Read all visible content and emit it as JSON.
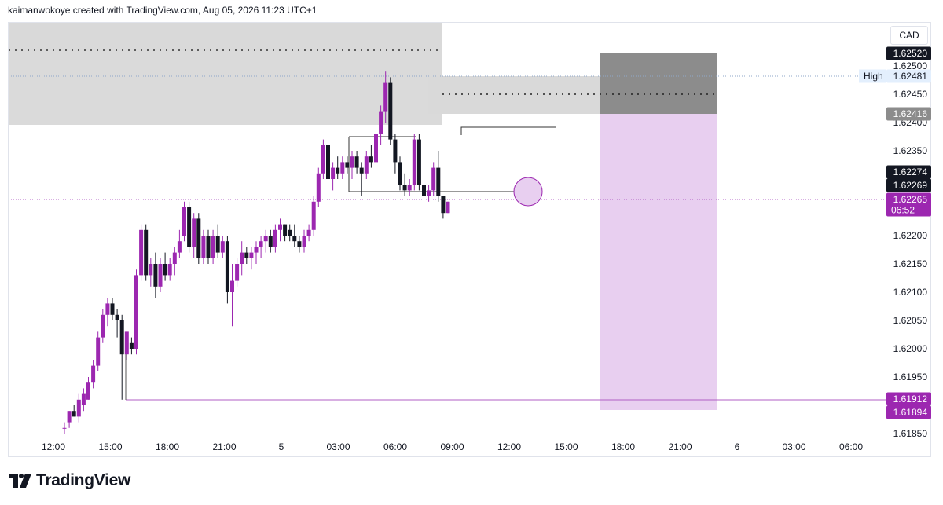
{
  "header": {
    "attribution": "kaimanwokoye created with TradingView.com, Aug 05, 2026 11:23 UTC+1"
  },
  "currency": "CAD",
  "logo_text": "TradingView",
  "colors": {
    "bull": "#9c27b0",
    "bear": "#131722",
    "zone_gray": "#d9d9d9",
    "target_purple": "#e8cff0",
    "stop_gray": "#8c8c8c",
    "price_purple": "#9c27b0"
  },
  "chart_data": {
    "type": "candlestick",
    "symbol_currency": "CAD",
    "x_ticks": [
      "12:00",
      "15:00",
      "18:00",
      "21:00",
      "5",
      "03:00",
      "06:00",
      "09:00",
      "12:00",
      "15:00",
      "18:00",
      "21:00",
      "6",
      "03:00",
      "06:00"
    ],
    "y_ticks": [
      "1.62500",
      "1.62450",
      "1.62400",
      "1.62350",
      "1.62300",
      "1.62200",
      "1.62150",
      "1.62100",
      "1.62050",
      "1.62000",
      "1.61950",
      "1.61850"
    ],
    "ylim": [
      1.6185,
      1.6253
    ],
    "price_labels": [
      {
        "text": "1.62520",
        "value": 1.6252,
        "style": "dark"
      },
      {
        "text": "1.62481",
        "value": 1.62481,
        "style": "high",
        "prefix": "High"
      },
      {
        "text": "1.62416",
        "value": 1.62416,
        "style": "gray"
      },
      {
        "text": "1.62274",
        "value": 1.62274,
        "style": "dark"
      },
      {
        "text": "1.62269",
        "value": 1.62269,
        "style": "dark"
      },
      {
        "text": "1.62265",
        "value": 1.62265,
        "style": "purple",
        "sub": "06:52"
      },
      {
        "text": "1.61912",
        "value": 1.61912,
        "style": "purple"
      },
      {
        "text": "1.61894",
        "value": 1.61894,
        "style": "purple"
      }
    ],
    "candles": [
      {
        "t": 0.0,
        "o": 1.6186,
        "h": 1.6187,
        "l": 1.6185,
        "c": 1.6186
      },
      {
        "t": 0.25,
        "o": 1.6187,
        "h": 1.6189,
        "l": 1.6186,
        "c": 1.6189
      },
      {
        "t": 0.5,
        "o": 1.6189,
        "h": 1.619,
        "l": 1.6188,
        "c": 1.6188
      },
      {
        "t": 0.75,
        "o": 1.6188,
        "h": 1.6192,
        "l": 1.6187,
        "c": 1.6191
      },
      {
        "t": 1.0,
        "o": 1.619,
        "h": 1.6193,
        "l": 1.6189,
        "c": 1.6192
      },
      {
        "t": 1.25,
        "o": 1.6191,
        "h": 1.6195,
        "l": 1.6191,
        "c": 1.6194
      },
      {
        "t": 1.5,
        "o": 1.6194,
        "h": 1.6198,
        "l": 1.6193,
        "c": 1.6197
      },
      {
        "t": 1.75,
        "o": 1.6197,
        "h": 1.6203,
        "l": 1.6196,
        "c": 1.6202
      },
      {
        "t": 2.0,
        "o": 1.6202,
        "h": 1.6207,
        "l": 1.6201,
        "c": 1.6206
      },
      {
        "t": 2.25,
        "o": 1.6206,
        "h": 1.6209,
        "l": 1.6204,
        "c": 1.6208
      },
      {
        "t": 2.5,
        "o": 1.6208,
        "h": 1.6209,
        "l": 1.6205,
        "c": 1.6206
      },
      {
        "t": 2.75,
        "o": 1.6206,
        "h": 1.6207,
        "l": 1.6202,
        "c": 1.6205
      },
      {
        "t": 3.0,
        "o": 1.6205,
        "h": 1.6206,
        "l": 1.6191,
        "c": 1.6199
      },
      {
        "t": 3.25,
        "o": 1.6199,
        "h": 1.6203,
        "l": 1.6198,
        "c": 1.6203
      },
      {
        "t": 3.5,
        "o": 1.6201,
        "h": 1.6202,
        "l": 1.6199,
        "c": 1.62
      },
      {
        "t": 3.75,
        "o": 1.62,
        "h": 1.6214,
        "l": 1.6199,
        "c": 1.6213
      },
      {
        "t": 4.0,
        "o": 1.6213,
        "h": 1.6222,
        "l": 1.6212,
        "c": 1.6221
      },
      {
        "t": 4.25,
        "o": 1.6221,
        "h": 1.6222,
        "l": 1.6212,
        "c": 1.6213
      },
      {
        "t": 4.5,
        "o": 1.6213,
        "h": 1.6216,
        "l": 1.6211,
        "c": 1.6215
      },
      {
        "t": 4.75,
        "o": 1.6215,
        "h": 1.6217,
        "l": 1.6209,
        "c": 1.6211
      },
      {
        "t": 5.0,
        "o": 1.6211,
        "h": 1.6216,
        "l": 1.621,
        "c": 1.6215
      },
      {
        "t": 5.25,
        "o": 1.6215,
        "h": 1.6217,
        "l": 1.6212,
        "c": 1.6213
      },
      {
        "t": 5.5,
        "o": 1.6213,
        "h": 1.6216,
        "l": 1.6212,
        "c": 1.6215
      },
      {
        "t": 5.75,
        "o": 1.6215,
        "h": 1.6218,
        "l": 1.6213,
        "c": 1.6217
      },
      {
        "t": 6.0,
        "o": 1.6217,
        "h": 1.6221,
        "l": 1.6216,
        "c": 1.6219
      },
      {
        "t": 6.25,
        "o": 1.622,
        "h": 1.6226,
        "l": 1.6219,
        "c": 1.6225
      },
      {
        "t": 6.5,
        "o": 1.6225,
        "h": 1.6226,
        "l": 1.6217,
        "c": 1.6218
      },
      {
        "t": 6.75,
        "o": 1.6218,
        "h": 1.6224,
        "l": 1.6216,
        "c": 1.6223
      },
      {
        "t": 7.0,
        "o": 1.6223,
        "h": 1.6224,
        "l": 1.6215,
        "c": 1.6216
      },
      {
        "t": 7.25,
        "o": 1.6216,
        "h": 1.6221,
        "l": 1.6215,
        "c": 1.622
      },
      {
        "t": 7.5,
        "o": 1.622,
        "h": 1.6221,
        "l": 1.6215,
        "c": 1.6216
      },
      {
        "t": 7.75,
        "o": 1.6216,
        "h": 1.6221,
        "l": 1.6215,
        "c": 1.622
      },
      {
        "t": 8.0,
        "o": 1.622,
        "h": 1.6222,
        "l": 1.6216,
        "c": 1.6217
      },
      {
        "t": 8.25,
        "o": 1.6217,
        "h": 1.622,
        "l": 1.6216,
        "c": 1.6219
      },
      {
        "t": 8.5,
        "o": 1.6219,
        "h": 1.622,
        "l": 1.6208,
        "c": 1.621
      },
      {
        "t": 8.75,
        "o": 1.621,
        "h": 1.6215,
        "l": 1.6204,
        "c": 1.6212
      },
      {
        "t": 9.0,
        "o": 1.6212,
        "h": 1.6216,
        "l": 1.6211,
        "c": 1.6215
      },
      {
        "t": 9.25,
        "o": 1.6215,
        "h": 1.6219,
        "l": 1.6213,
        "c": 1.6217
      },
      {
        "t": 9.5,
        "o": 1.6217,
        "h": 1.6218,
        "l": 1.6215,
        "c": 1.6216
      },
      {
        "t": 9.75,
        "o": 1.6216,
        "h": 1.6218,
        "l": 1.6214,
        "c": 1.6217
      },
      {
        "t": 10.0,
        "o": 1.6217,
        "h": 1.6219,
        "l": 1.6215,
        "c": 1.6218
      },
      {
        "t": 10.25,
        "o": 1.6218,
        "h": 1.622,
        "l": 1.6216,
        "c": 1.6219
      },
      {
        "t": 10.5,
        "o": 1.6219,
        "h": 1.6221,
        "l": 1.6217,
        "c": 1.622
      },
      {
        "t": 10.75,
        "o": 1.622,
        "h": 1.6221,
        "l": 1.6217,
        "c": 1.6218
      },
      {
        "t": 11.0,
        "o": 1.6218,
        "h": 1.6222,
        "l": 1.6217,
        "c": 1.6221
      },
      {
        "t": 11.25,
        "o": 1.6221,
        "h": 1.6223,
        "l": 1.6219,
        "c": 1.6222
      },
      {
        "t": 11.5,
        "o": 1.6222,
        "h": 1.6222,
        "l": 1.6219,
        "c": 1.622
      },
      {
        "t": 11.75,
        "o": 1.6221,
        "h": 1.6222,
        "l": 1.6219,
        "c": 1.622
      },
      {
        "t": 12.0,
        "o": 1.622,
        "h": 1.6222,
        "l": 1.6218,
        "c": 1.6219
      },
      {
        "t": 12.25,
        "o": 1.6219,
        "h": 1.622,
        "l": 1.6217,
        "c": 1.6218
      },
      {
        "t": 12.5,
        "o": 1.6218,
        "h": 1.6221,
        "l": 1.6217,
        "c": 1.622
      },
      {
        "t": 12.75,
        "o": 1.622,
        "h": 1.6222,
        "l": 1.6219,
        "c": 1.6221
      },
      {
        "t": 13.0,
        "o": 1.6221,
        "h": 1.6227,
        "l": 1.622,
        "c": 1.6226
      },
      {
        "t": 13.25,
        "o": 1.6226,
        "h": 1.6232,
        "l": 1.6225,
        "c": 1.6231
      },
      {
        "t": 13.5,
        "o": 1.6231,
        "h": 1.6237,
        "l": 1.623,
        "c": 1.6236
      },
      {
        "t": 13.75,
        "o": 1.6236,
        "h": 1.6238,
        "l": 1.6229,
        "c": 1.623
      },
      {
        "t": 14.0,
        "o": 1.623,
        "h": 1.6233,
        "l": 1.6228,
        "c": 1.6232
      },
      {
        "t": 14.25,
        "o": 1.6232,
        "h": 1.6234,
        "l": 1.623,
        "c": 1.6231
      },
      {
        "t": 14.5,
        "o": 1.6231,
        "h": 1.6234,
        "l": 1.623,
        "c": 1.6233
      },
      {
        "t": 14.75,
        "o": 1.6233,
        "h": 1.6234,
        "l": 1.6231,
        "c": 1.6232
      },
      {
        "t": 15.0,
        "o": 1.6232,
        "h": 1.6235,
        "l": 1.623,
        "c": 1.6234
      },
      {
        "t": 15.25,
        "o": 1.6234,
        "h": 1.6235,
        "l": 1.6231,
        "c": 1.6232
      },
      {
        "t": 15.5,
        "o": 1.6232,
        "h": 1.6233,
        "l": 1.6227,
        "c": 1.6231
      },
      {
        "t": 15.75,
        "o": 1.6231,
        "h": 1.6235,
        "l": 1.623,
        "c": 1.6234
      },
      {
        "t": 16.0,
        "o": 1.6234,
        "h": 1.6236,
        "l": 1.6232,
        "c": 1.6233
      },
      {
        "t": 16.25,
        "o": 1.6233,
        "h": 1.624,
        "l": 1.6232,
        "c": 1.6238
      },
      {
        "t": 16.5,
        "o": 1.6238,
        "h": 1.6243,
        "l": 1.6236,
        "c": 1.6242
      },
      {
        "t": 16.75,
        "o": 1.6242,
        "h": 1.6249,
        "l": 1.624,
        "c": 1.6247
      },
      {
        "t": 17.0,
        "o": 1.6247,
        "h": 1.6248,
        "l": 1.6236,
        "c": 1.6237
      },
      {
        "t": 17.25,
        "o": 1.6237,
        "h": 1.6238,
        "l": 1.6231,
        "c": 1.6233
      },
      {
        "t": 17.5,
        "o": 1.6233,
        "h": 1.6234,
        "l": 1.6228,
        "c": 1.6229
      },
      {
        "t": 17.75,
        "o": 1.6229,
        "h": 1.6231,
        "l": 1.6227,
        "c": 1.6228
      },
      {
        "t": 18.0,
        "o": 1.6228,
        "h": 1.623,
        "l": 1.6227,
        "c": 1.6229
      },
      {
        "t": 18.25,
        "o": 1.6229,
        "h": 1.6238,
        "l": 1.6228,
        "c": 1.6237
      },
      {
        "t": 18.5,
        "o": 1.6237,
        "h": 1.6238,
        "l": 1.6228,
        "c": 1.6229
      },
      {
        "t": 18.75,
        "o": 1.6229,
        "h": 1.623,
        "l": 1.6226,
        "c": 1.6227
      },
      {
        "t": 19.0,
        "o": 1.6227,
        "h": 1.6229,
        "l": 1.6226,
        "c": 1.6228
      },
      {
        "t": 19.25,
        "o": 1.6228,
        "h": 1.6233,
        "l": 1.6227,
        "c": 1.6232
      },
      {
        "t": 19.5,
        "o": 1.6232,
        "h": 1.6235,
        "l": 1.6226,
        "c": 1.6227
      },
      {
        "t": 19.75,
        "o": 1.6227,
        "h": 1.6227,
        "l": 1.6223,
        "c": 1.6224
      },
      {
        "t": 20.0,
        "o": 1.6224,
        "h": 1.6226,
        "l": 1.6224,
        "c": 1.6226
      }
    ]
  }
}
